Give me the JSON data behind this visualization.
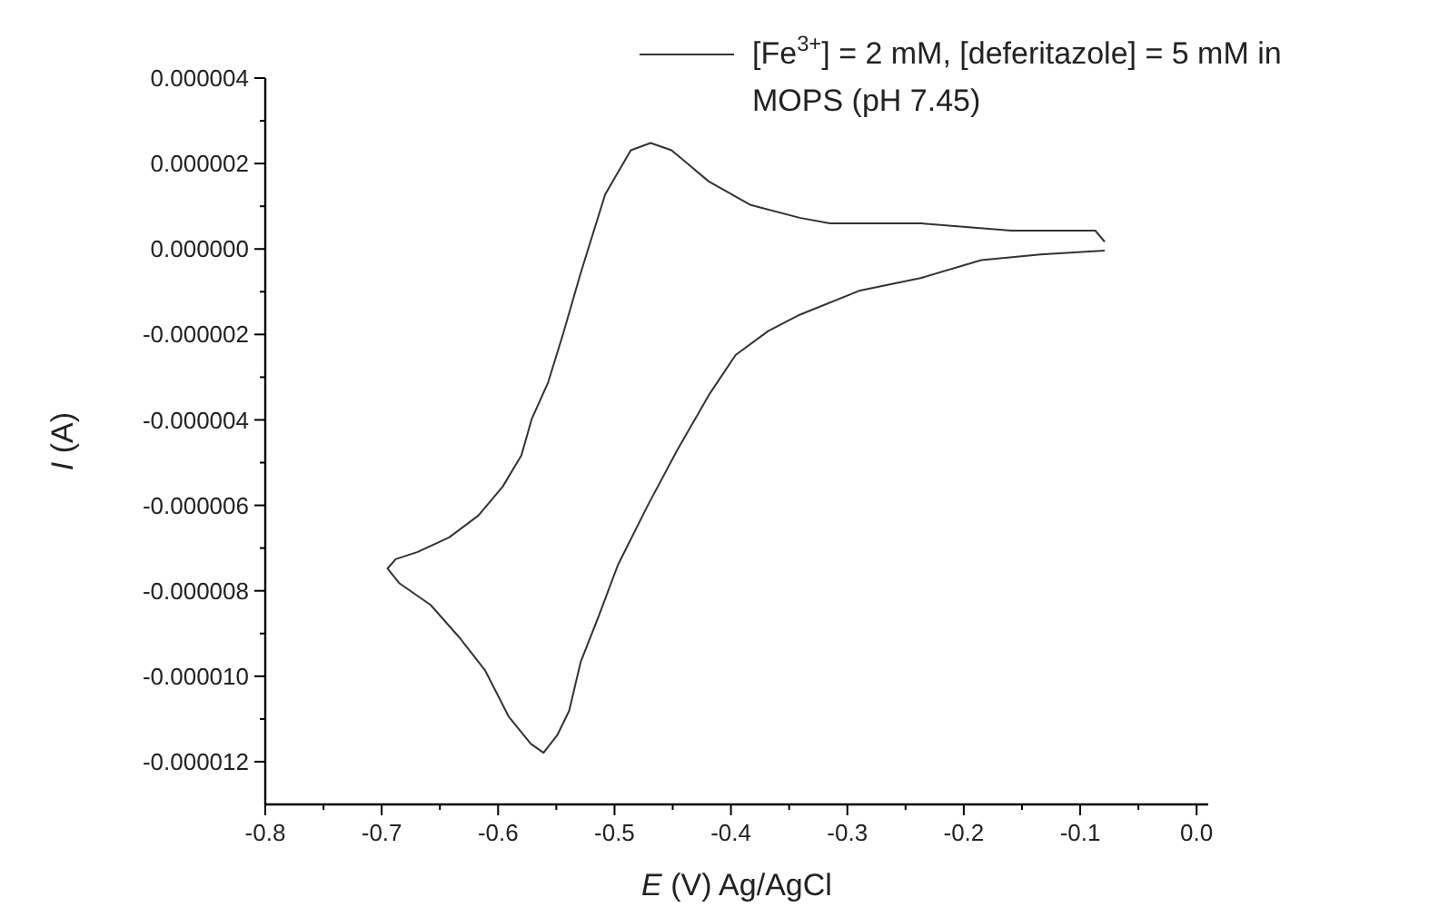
{
  "chart_data": {
    "type": "line",
    "xlabel": "E (V) Ag/AgCl",
    "ylabel": "I (A)",
    "legend": "top right",
    "grid": false,
    "marker": "none",
    "line_style": "solid",
    "xlim": [
      -0.8,
      0.01
    ],
    "ylim": [
      -1.3e-05,
      4e-06
    ],
    "xticks": [
      -0.8,
      {
        "value": -0.75,
        "label": null
      },
      -0.7,
      {
        "value": -0.65,
        "label": null
      },
      -0.6,
      {
        "value": -0.55,
        "label": null
      },
      -0.5,
      {
        "value": -0.45,
        "label": null
      },
      -0.4,
      {
        "value": -0.35,
        "label": null
      },
      -0.3,
      {
        "value": -0.25,
        "label": null
      },
      -0.2,
      {
        "value": -0.15,
        "label": null
      },
      -0.1,
      {
        "value": -0.05,
        "label": null
      },
      {
        "value": 0,
        "label": "0.0"
      }
    ],
    "yticks": [
      {
        "value": -1.2e-05,
        "label": "-0.000012"
      },
      {
        "value": -1.1e-05,
        "label": null
      },
      {
        "value": -1e-05,
        "label": "-0.000010"
      },
      {
        "value": -9e-06,
        "label": null
      },
      {
        "value": -8e-06,
        "label": "-0.000008"
      },
      {
        "value": -7e-06,
        "label": null
      },
      {
        "value": -6e-06,
        "label": "-0.000006"
      },
      {
        "value": -5e-06,
        "label": null
      },
      {
        "value": -4e-06,
        "label": "-0.000004"
      },
      {
        "value": -3e-06,
        "label": null
      },
      {
        "value": -2e-06,
        "label": "-0.000002"
      },
      {
        "value": -1e-06,
        "label": null
      },
      {
        "value": 0,
        "label": "0.000000"
      },
      {
        "value": 1e-06,
        "label": null
      },
      {
        "value": 2e-06,
        "label": "0.000002"
      },
      {
        "value": 3e-06,
        "label": null
      },
      {
        "value": 4e-06,
        "label": "0.000004"
      }
    ],
    "series": [
      {
        "name": "[Fe$^{3+}$] = 2 mM, [deferitazole] = 5 mM in MOPS (pH 7.45)",
        "color": "#333333",
        "x": [
          -0.079,
          -0.134,
          -0.185,
          -0.237,
          -0.29,
          -0.341,
          -0.368,
          -0.396,
          -0.419,
          -0.446,
          -0.471,
          -0.497,
          -0.513,
          -0.529,
          -0.539,
          -0.549,
          -0.561,
          -0.572,
          -0.591,
          -0.611,
          -0.633,
          -0.658,
          -0.685,
          -0.695,
          -0.688,
          -0.669,
          -0.642,
          -0.617,
          -0.596,
          -0.58,
          -0.571,
          -0.557,
          -0.544,
          -0.529,
          -0.508,
          -0.486,
          -0.469,
          -0.451,
          -0.419,
          -0.383,
          -0.341,
          -0.315,
          -0.237,
          -0.159,
          -0.087,
          -0.079
        ],
        "values": [
          -4e-08,
          -1.3e-07,
          -2.6e-07,
          -6.8e-07,
          -9.8e-07,
          -1.54e-06,
          -1.92e-06,
          -2.48e-06,
          -3.42e-06,
          -4.7e-06,
          -5.98e-06,
          -7.39e-06,
          -8.55e-06,
          -9.66e-06,
          -1.081e-05,
          -1.137e-05,
          -1.179e-05,
          -1.158e-05,
          -1.094e-05,
          -9.87e-06,
          -9.1e-06,
          -8.33e-06,
          -7.82e-06,
          -7.48e-06,
          -7.26e-06,
          -7.09e-06,
          -6.75e-06,
          -6.24e-06,
          -5.56e-06,
          -4.83e-06,
          -3.97e-06,
          -3.12e-06,
          -1.97e-06,
          -5.6e-07,
          1.28e-06,
          2.31e-06,
          2.48e-06,
          2.31e-06,
          1.58e-06,
          1.03e-06,
          7.3e-07,
          6e-07,
          6e-07,
          4.3e-07,
          4.3e-07,
          1.7e-07
        ]
      }
    ]
  }
}
